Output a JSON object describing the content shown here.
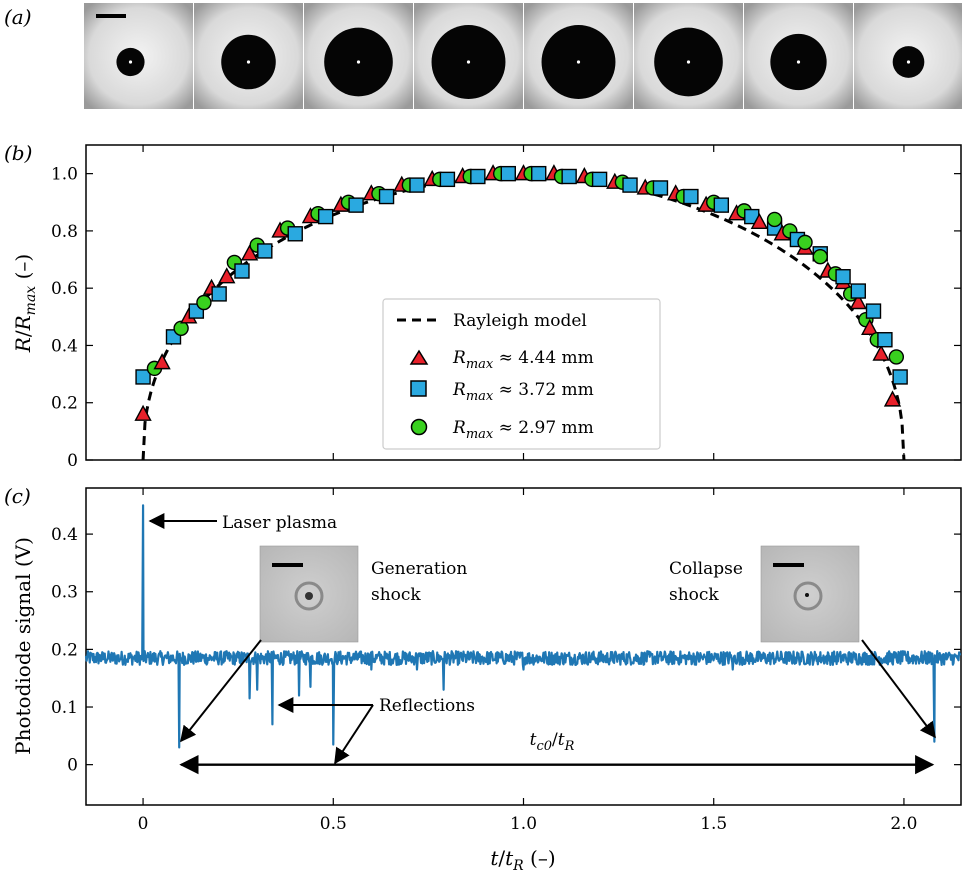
{
  "panels": {
    "a": "(a)",
    "b": "(b)",
    "c": "(c)"
  },
  "chart_data": [
    {
      "type": "scatter",
      "panel": "b",
      "xlabel": "",
      "ylabel": "R/R_max (–)",
      "xlim": [
        -0.15,
        2.15
      ],
      "ylim": [
        0,
        1.1
      ],
      "yticks": [
        0,
        0.2,
        0.4,
        0.6,
        0.8,
        1.0
      ],
      "yticklabels": [
        "0",
        "0.2",
        "0.4",
        "0.6",
        "0.8",
        "1.0"
      ],
      "xticks": [
        0,
        0.5,
        1.0,
        1.5,
        2.0
      ],
      "legend_position": "lower-center",
      "legend_labels": {
        "model": "Rayleigh model",
        "s1": "R_max ≈ 4.44 mm",
        "s2": "R_max ≈ 3.72 mm",
        "s3": "R_max ≈ 2.97 mm"
      },
      "model": {
        "name": "Rayleigh model",
        "style": "dashed",
        "color": "#000000"
      },
      "series": [
        {
          "name": "R_max ≈ 4.44 mm",
          "marker": "triangle",
          "color": "#e8202a",
          "x": [
            0.0,
            0.05,
            0.12,
            0.18,
            0.22,
            0.28,
            0.36,
            0.44,
            0.52,
            0.6,
            0.68,
            0.76,
            0.84,
            0.92,
            1.0,
            1.08,
            1.16,
            1.24,
            1.32,
            1.4,
            1.48,
            1.56,
            1.62,
            1.68,
            1.74,
            1.8,
            1.84,
            1.88,
            1.91,
            1.94,
            1.97
          ],
          "y": [
            0.16,
            0.34,
            0.5,
            0.6,
            0.64,
            0.72,
            0.8,
            0.85,
            0.89,
            0.93,
            0.96,
            0.98,
            0.99,
            1.0,
            1.0,
            1.0,
            0.99,
            0.97,
            0.95,
            0.93,
            0.89,
            0.86,
            0.83,
            0.79,
            0.74,
            0.66,
            0.62,
            0.55,
            0.46,
            0.37,
            0.21
          ]
        },
        {
          "name": "R_max ≈ 3.72 mm",
          "marker": "square",
          "color": "#2aa9e0",
          "x": [
            0.0,
            0.08,
            0.14,
            0.2,
            0.26,
            0.32,
            0.4,
            0.48,
            0.56,
            0.64,
            0.72,
            0.8,
            0.88,
            0.96,
            1.04,
            1.12,
            1.2,
            1.28,
            1.36,
            1.44,
            1.52,
            1.6,
            1.66,
            1.72,
            1.78,
            1.84,
            1.88,
            1.92,
            1.95,
            1.99
          ],
          "y": [
            0.29,
            0.43,
            0.52,
            0.58,
            0.66,
            0.73,
            0.79,
            0.85,
            0.89,
            0.92,
            0.96,
            0.98,
            0.99,
            1.0,
            1.0,
            0.99,
            0.98,
            0.96,
            0.95,
            0.92,
            0.89,
            0.85,
            0.81,
            0.77,
            0.72,
            0.64,
            0.59,
            0.52,
            0.42,
            0.29
          ]
        },
        {
          "name": "R_max ≈ 2.97 mm",
          "marker": "circle",
          "color": "#39d11f",
          "x": [
            0.03,
            0.1,
            0.16,
            0.24,
            0.3,
            0.38,
            0.46,
            0.54,
            0.62,
            0.7,
            0.78,
            0.86,
            0.94,
            1.02,
            1.1,
            1.18,
            1.26,
            1.34,
            1.42,
            1.5,
            1.58,
            1.66,
            1.7,
            1.74,
            1.78,
            1.82,
            1.86,
            1.9,
            1.93,
            1.98
          ],
          "y": [
            0.32,
            0.46,
            0.55,
            0.69,
            0.75,
            0.81,
            0.86,
            0.9,
            0.93,
            0.96,
            0.98,
            0.99,
            1.0,
            1.0,
            0.99,
            0.98,
            0.97,
            0.95,
            0.92,
            0.9,
            0.87,
            0.84,
            0.8,
            0.76,
            0.71,
            0.65,
            0.58,
            0.49,
            0.42,
            0.36
          ]
        }
      ]
    },
    {
      "type": "line",
      "panel": "c",
      "xlabel": "t/t_R (–)",
      "ylabel": "Photodiode signal (V)",
      "xlim": [
        -0.15,
        2.15
      ],
      "ylim": [
        -0.07,
        0.48
      ],
      "yticks": [
        0,
        0.1,
        0.2,
        0.3,
        0.4
      ],
      "yticklabels": [
        "0",
        "0.1",
        "0.2",
        "0.3",
        "0.4"
      ],
      "xticks": [
        0,
        0.5,
        1.0,
        1.5,
        2.0
      ],
      "xticklabels": [
        "0",
        "0.5",
        "1.0",
        "1.5",
        "2.0"
      ],
      "color": "#1f77b4",
      "baseline": 0.185,
      "noise_amplitude": 0.012,
      "peaks": [
        {
          "x": 0.0,
          "y": 0.45
        },
        {
          "x": 0.095,
          "y": 0.03
        },
        {
          "x": 0.28,
          "y": 0.115
        },
        {
          "x": 0.3,
          "y": 0.13
        },
        {
          "x": 0.34,
          "y": 0.07
        },
        {
          "x": 0.41,
          "y": 0.12
        },
        {
          "x": 0.44,
          "y": 0.135
        },
        {
          "x": 0.5,
          "y": 0.035
        },
        {
          "x": 0.6,
          "y": 0.165
        },
        {
          "x": 0.72,
          "y": 0.165
        },
        {
          "x": 0.79,
          "y": 0.13
        },
        {
          "x": 1.0,
          "y": 0.165
        },
        {
          "x": 1.55,
          "y": 0.165
        },
        {
          "x": 2.08,
          "y": 0.04
        }
      ],
      "annotations": {
        "laser_plasma": "Laser plasma",
        "generation_shock": [
          "Generation",
          "shock"
        ],
        "collapse_shock": [
          "Collapse",
          "shock"
        ],
        "reflections": "Reflections",
        "tc0": "t_c0/t_R"
      },
      "arrow_span": [
        0.095,
        2.08
      ]
    }
  ],
  "strip": {
    "frame_count": 8,
    "relative_radii": [
      0.32,
      0.62,
      0.78,
      0.84,
      0.84,
      0.78,
      0.64,
      0.36
    ]
  }
}
